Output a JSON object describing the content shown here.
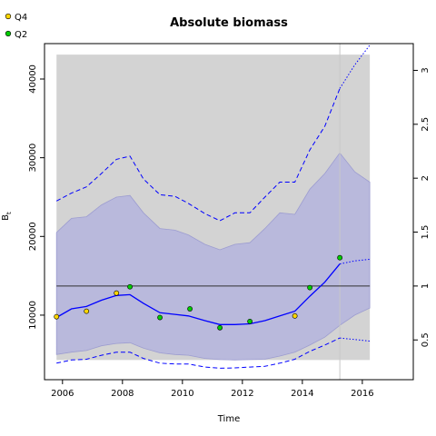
{
  "chart_data": {
    "type": "line",
    "title": "Absolute biomass",
    "xlabel": "Time",
    "ylabel": "B",
    "ylabel_subscript": "t",
    "xlim": [
      2005.4,
      2017.7
    ],
    "ylim": [
      1800,
      44500
    ],
    "xticks": [
      2006,
      2008,
      2010,
      2012,
      2014,
      2016
    ],
    "yticks": [
      10000,
      20000,
      30000,
      40000
    ],
    "right_axis": {
      "ticks": [
        0.5,
        1,
        1.5,
        2,
        2.5,
        3
      ],
      "tick_labels": [
        "0.5",
        "1",
        "1.5",
        "2",
        "2.5",
        "3"
      ],
      "value_per_unit": 13700
    },
    "reference_line": 13700,
    "vertical_line_x": 2015.25,
    "grey_band": {
      "x": [
        2005.8,
        2016.25
      ],
      "y": [
        4300,
        43100
      ]
    },
    "ci_band": {
      "x": [
        2005.8,
        2006.3,
        2006.8,
        2007.3,
        2007.8,
        2008.25,
        2008.7,
        2009.25,
        2009.75,
        2010.2,
        2010.75,
        2011.25,
        2011.75,
        2012.25,
        2012.75,
        2013.25,
        2013.75,
        2014.25,
        2014.75,
        2015.25,
        2015.75,
        2016.25
      ],
      "upper": [
        20500,
        22300,
        22500,
        24000,
        25000,
        25200,
        23000,
        21000,
        20800,
        20200,
        19000,
        18300,
        19000,
        19200,
        21000,
        23000,
        22800,
        26000,
        28000,
        30600,
        28200,
        26900
      ],
      "lower": [
        5000,
        5300,
        5500,
        6100,
        6400,
        6500,
        5800,
        5200,
        5000,
        4900,
        4500,
        4350,
        4300,
        4350,
        4400,
        4800,
        5300,
        6200,
        7200,
        8700,
        10000,
        10900
      ]
    },
    "series": [
      {
        "name": "",
        "style": "solid",
        "color": "#0000ff",
        "x": [
          2005.8,
          2006.3,
          2006.8,
          2007.3,
          2007.8,
          2008.25,
          2008.7,
          2009.25,
          2009.75,
          2010.2,
          2010.75,
          2011.25,
          2011.75,
          2012.25,
          2012.75,
          2013.25,
          2013.75,
          2014.25,
          2014.75,
          2015.25
        ],
        "values": [
          9700,
          10800,
          11100,
          11900,
          12500,
          12600,
          11500,
          10300,
          10100,
          9900,
          9300,
          8800,
          8800,
          8900,
          9300,
          9900,
          10500,
          12400,
          14200,
          16500
        ]
      },
      {
        "name": "",
        "style": "dotted",
        "color": "#0000ff",
        "x": [
          2015.25,
          2015.75,
          2016.25
        ],
        "values": [
          16500,
          16900,
          17100
        ]
      },
      {
        "name": "",
        "style": "dashed",
        "color": "#0000ff",
        "x": [
          2005.8,
          2006.3,
          2006.8,
          2007.3,
          2007.8,
          2008.25,
          2008.7,
          2009.25,
          2009.75,
          2010.2,
          2010.75,
          2011.25,
          2011.75,
          2012.25,
          2012.75,
          2013.25,
          2013.75,
          2014.25,
          2014.75,
          2015.25
        ],
        "values": [
          24500,
          25500,
          26300,
          28000,
          29800,
          30200,
          27300,
          25300,
          25100,
          24200,
          22900,
          22000,
          23000,
          23000,
          25000,
          26900,
          26900,
          31000,
          34000,
          38800
        ]
      },
      {
        "name": "",
        "style": "dotted",
        "color": "#0000ff",
        "x": [
          2015.25,
          2015.75,
          2016.25
        ],
        "values": [
          38800,
          41800,
          44300
        ]
      },
      {
        "name": "",
        "style": "dashed",
        "color": "#0000ff",
        "x": [
          2005.8,
          2006.3,
          2006.8,
          2007.3,
          2007.8,
          2008.25,
          2008.7,
          2009.25,
          2009.75,
          2010.2,
          2010.75,
          2011.25,
          2011.75,
          2012.25,
          2012.75,
          2013.25,
          2013.75,
          2014.25,
          2014.75,
          2015.25
        ],
        "values": [
          3900,
          4300,
          4400,
          4900,
          5300,
          5300,
          4500,
          3900,
          3800,
          3800,
          3400,
          3250,
          3300,
          3400,
          3500,
          3900,
          4400,
          5400,
          6200,
          7100
        ]
      },
      {
        "name": "",
        "style": "dotted",
        "color": "#0000ff",
        "x": [
          2015.25,
          2015.75,
          2016.25
        ],
        "values": [
          7100,
          6900,
          6700
        ]
      }
    ],
    "points": [
      {
        "name": "Q4",
        "color": "#ffd700",
        "x": [
          2005.8,
          2006.8,
          2007.8,
          2013.75
        ],
        "values": [
          9800,
          10500,
          12800,
          9900
        ]
      },
      {
        "name": "Q2",
        "color": "#00cd00",
        "x": [
          2008.25,
          2009.25,
          2010.25,
          2011.25,
          2012.25,
          2014.25,
          2015.25
        ],
        "values": [
          13600,
          9700,
          10800,
          8400,
          9200,
          13500,
          17300
        ]
      }
    ],
    "legend": {
      "position": "top-left",
      "entries": [
        {
          "label": "Q4",
          "color": "#ffd700"
        },
        {
          "label": "Q2",
          "color": "#00cd00"
        }
      ]
    },
    "grid": false
  }
}
